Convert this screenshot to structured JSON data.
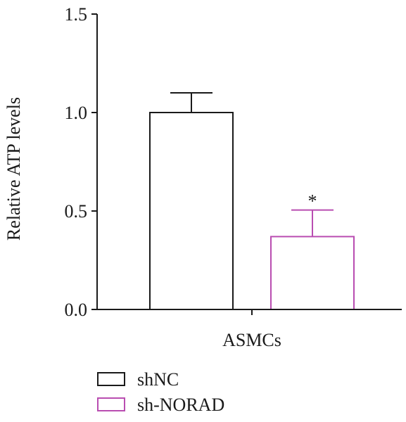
{
  "chart_data": {
    "type": "bar",
    "title": "",
    "xlabel": "",
    "ylabel": "Relative ATP levels",
    "ylim": [
      0,
      1.5
    ],
    "yticks": [
      "0.0",
      "0.5",
      "1.0",
      "1.5"
    ],
    "categories": [
      "ASMCs"
    ],
    "grid": false,
    "legend_position": "bottom-left",
    "series": [
      {
        "name": "shNC",
        "values": [
          1.0
        ],
        "error": [
          0.1
        ],
        "color": "#1a1a1a",
        "fill": "#ffffff",
        "significance": ""
      },
      {
        "name": "sh-NORAD",
        "values": [
          0.37
        ],
        "error": [
          0.135
        ],
        "color": "#b94db1",
        "fill": "#ffffff",
        "significance": "*"
      }
    ]
  }
}
